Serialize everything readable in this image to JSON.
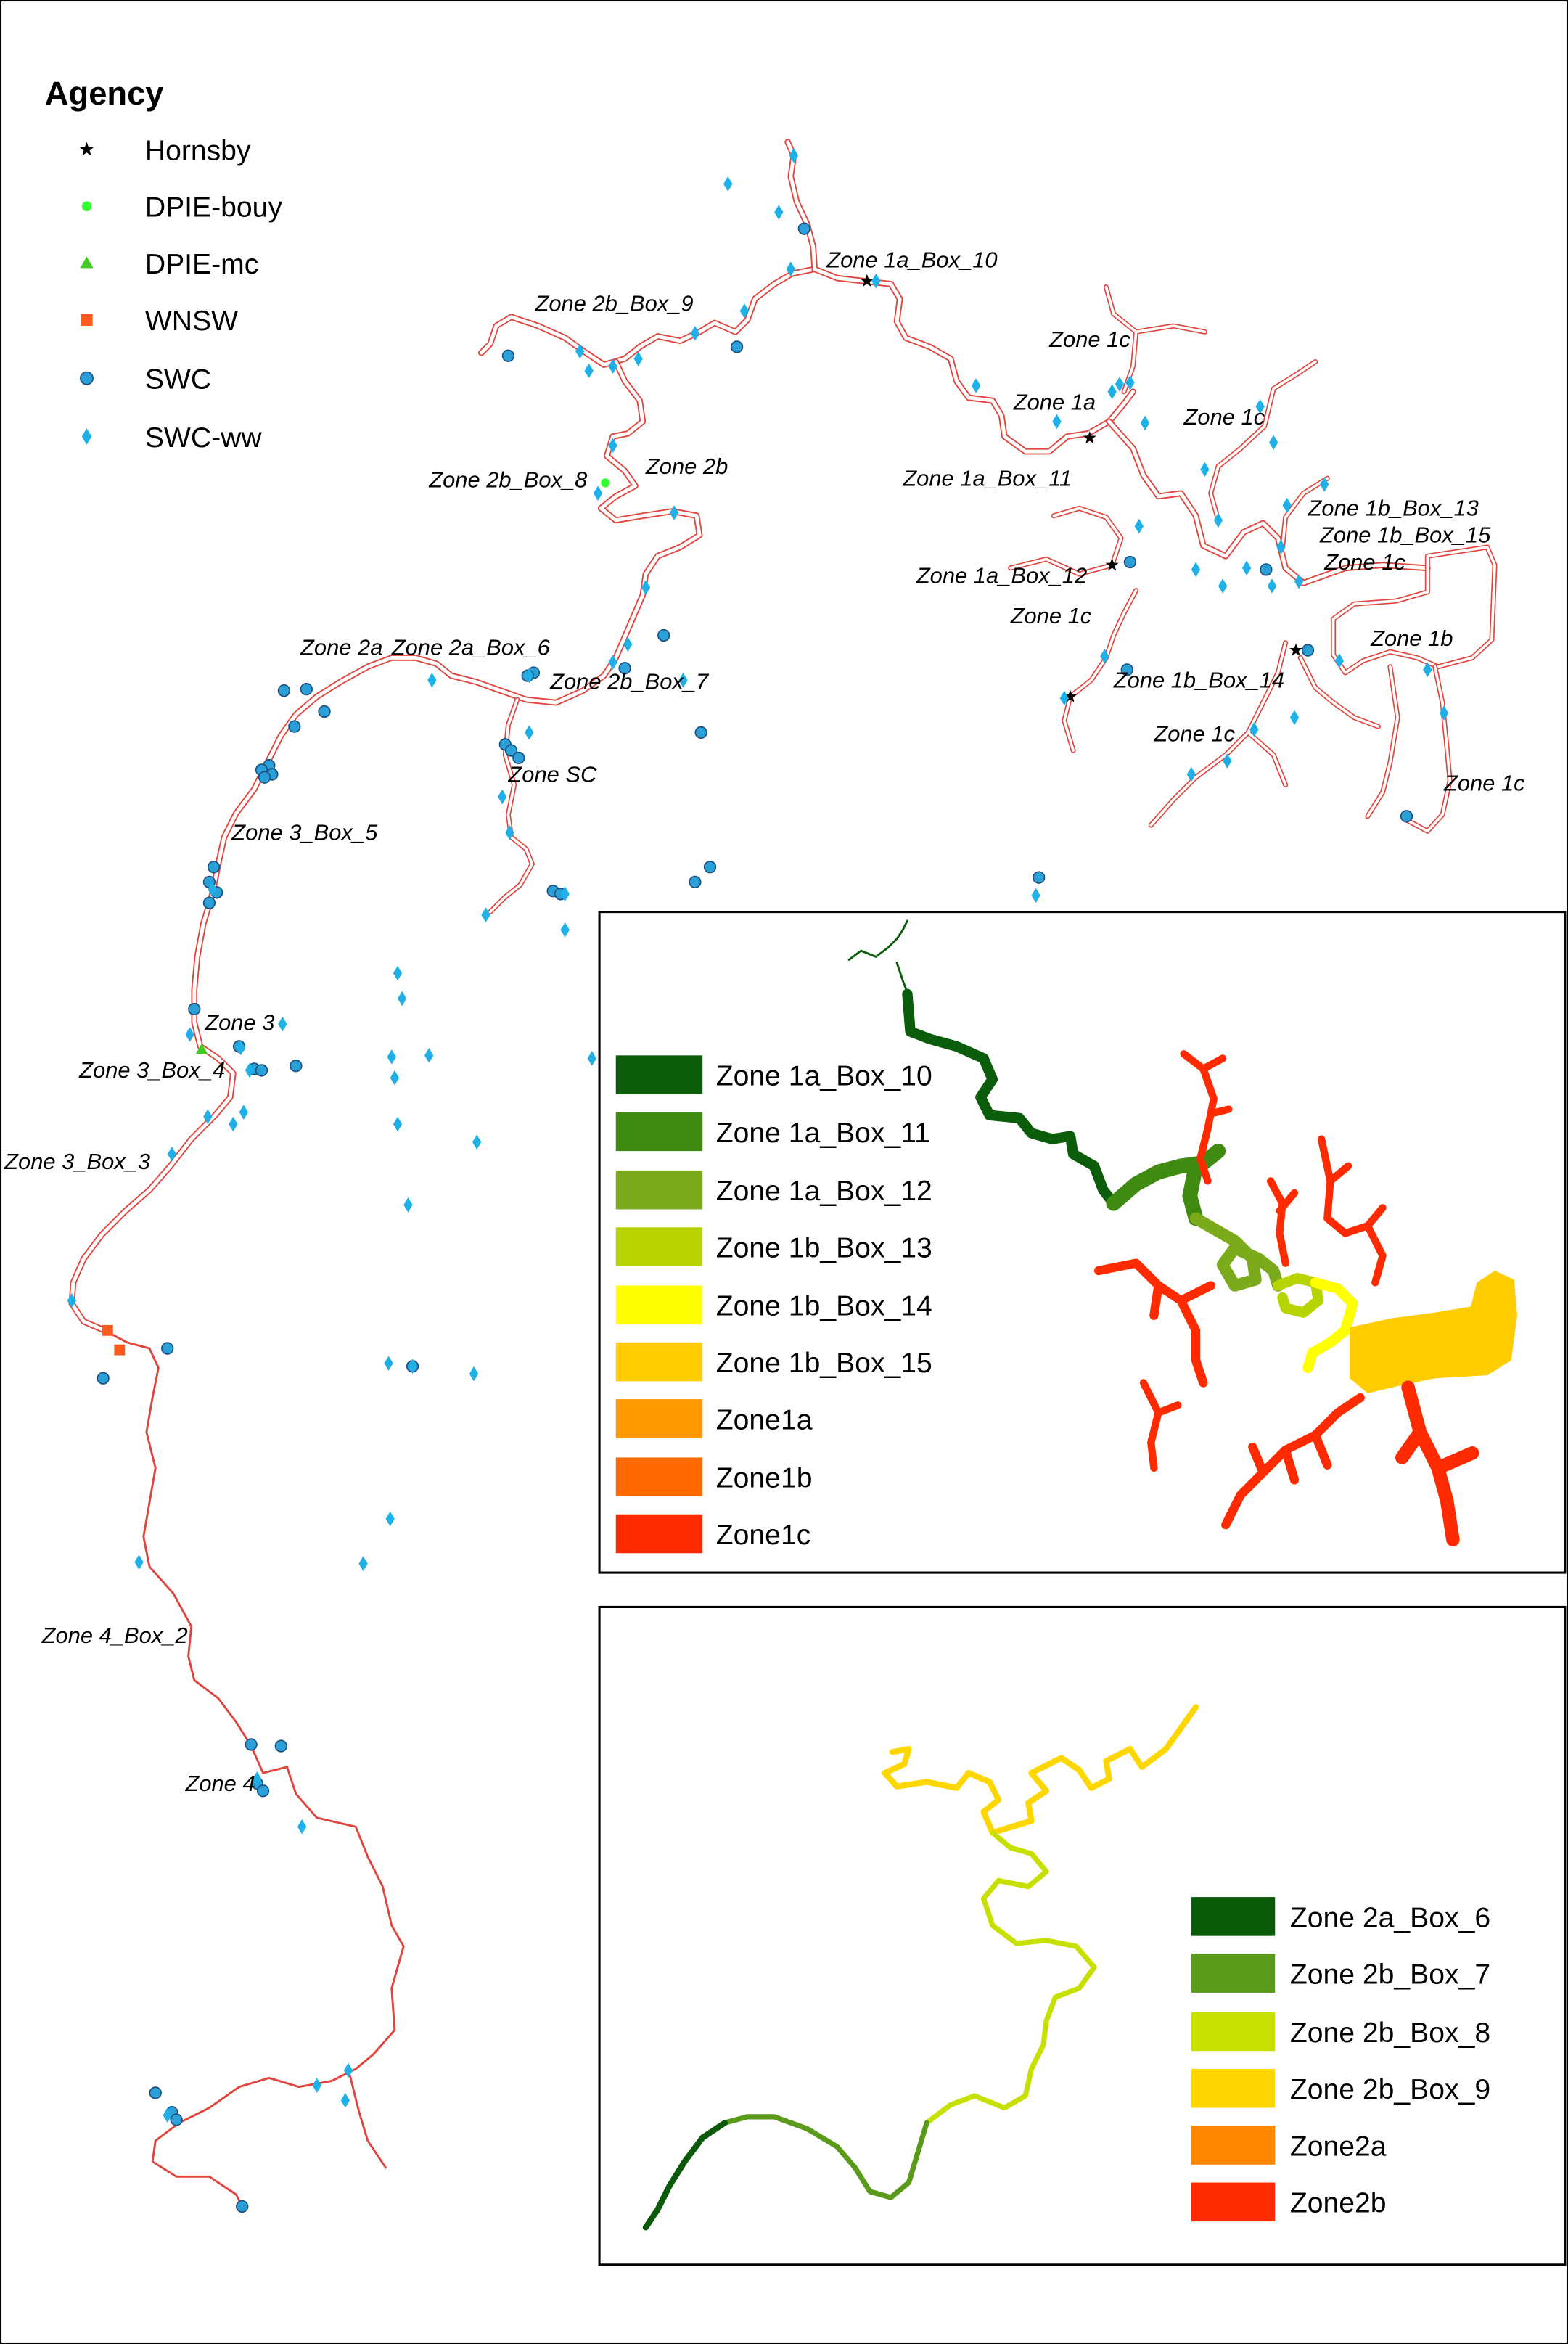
{
  "legend": {
    "title": "Agency",
    "items": [
      {
        "label": "Hornsby",
        "symbol": "star-icon",
        "color": "#000000"
      },
      {
        "label": "DPIE-bouy",
        "symbol": "circle-icon",
        "color": "#33ff33"
      },
      {
        "label": "DPIE-mc",
        "symbol": "triangle-icon",
        "color": "#3dcc1f"
      },
      {
        "label": "WNSW",
        "symbol": "square-icon",
        "color": "#ff5a1e"
      },
      {
        "label": "SWC",
        "symbol": "circle-icon",
        "color": "#2a9fd8"
      },
      {
        "label": "SWC-ww",
        "symbol": "diamond-icon",
        "color": "#1fb0e8"
      }
    ]
  },
  "zone_labels": [
    "Zone 1a_Box_10",
    "Zone 2b_Box_9",
    "Zone 1c",
    "Zone 1a",
    "Zone 1c",
    "Zone 2b_Box_8",
    "Zone 2b",
    "Zone 1a_Box_11",
    "Zone 1b_Box_13",
    "Zone 1b_Box_15",
    "Zone 1c",
    "Zone 1a_Box_12",
    "Zone 1c",
    "Zone 1b",
    "Zone 2a",
    "Zone 2a_Box_6",
    "Zone 2b_Box_7",
    "Zone 1b_Box_14",
    "Zone 1c",
    "Zone SC",
    "Zone 1c",
    "Zone 3_Box_5",
    "Zone 3",
    "Zone 3_Box_4",
    "Zone 3_Box_3",
    "Zone 4_Box_2",
    "Zone 4"
  ],
  "inset_zone1": {
    "items": [
      {
        "label": "Zone 1a_Box_10",
        "color": "#0b5c0b"
      },
      {
        "label": "Zone 1a_Box_11",
        "color": "#3f8a10"
      },
      {
        "label": "Zone 1a_Box_12",
        "color": "#7bab1b"
      },
      {
        "label": "Zone 1b_Box_13",
        "color": "#b8d400"
      },
      {
        "label": "Zone 1b_Box_14",
        "color": "#ffff00"
      },
      {
        "label": "Zone 1b_Box_15",
        "color": "#ffcc00"
      },
      {
        "label": "Zone1a",
        "color": "#ff9900"
      },
      {
        "label": "Zone1b",
        "color": "#ff6a00"
      },
      {
        "label": "Zone1c",
        "color": "#ff2a00"
      }
    ]
  },
  "inset_zone2": {
    "items": [
      {
        "label": "Zone 2a_Box_6",
        "color": "#0a5a0a"
      },
      {
        "label": "Zone 2b_Box_7",
        "color": "#5a9a1a"
      },
      {
        "label": "Zone 2b_Box_8",
        "color": "#c8e000"
      },
      {
        "label": "Zone 2b_Box_9",
        "color": "#ffd700"
      },
      {
        "label": "Zone2a",
        "color": "#ff8800"
      },
      {
        "label": "Zone2b",
        "color": "#ff2a00"
      }
    ]
  },
  "colors": {
    "river": "#e0443c"
  }
}
